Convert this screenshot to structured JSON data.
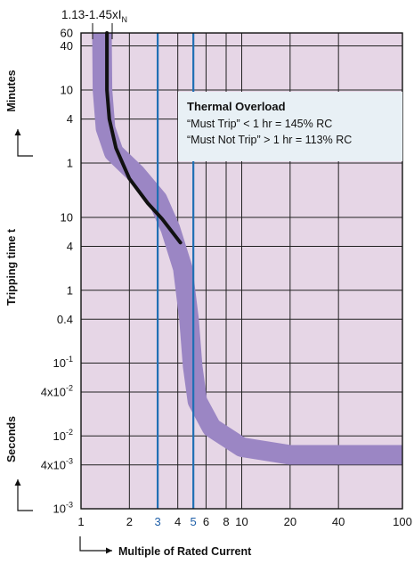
{
  "chart_data": {
    "type": "line",
    "title": "",
    "xlabel": "Multiple of Rated Current",
    "ylabel": "Tripping time t",
    "y_unit_upper": "Minutes",
    "y_unit_lower": "Seconds",
    "x_scale": "log",
    "xlim": [
      1,
      100
    ],
    "x_ticks": [
      {
        "value": 1,
        "label": "1",
        "highlight": false
      },
      {
        "value": 2,
        "label": "2",
        "highlight": false
      },
      {
        "value": 3,
        "label": "3",
        "highlight": true
      },
      {
        "value": 4,
        "label": "4",
        "highlight": false
      },
      {
        "value": 5,
        "label": "5",
        "highlight": true
      },
      {
        "value": 6,
        "label": "6",
        "highlight": false
      },
      {
        "value": 8,
        "label": "8",
        "highlight": false
      },
      {
        "value": 10,
        "label": "10",
        "highlight": false
      },
      {
        "value": 20,
        "label": "20",
        "highlight": false
      },
      {
        "value": 40,
        "label": "40",
        "highlight": false
      },
      {
        "value": 100,
        "label": "100",
        "highlight": false
      }
    ],
    "y_ticks_minutes": [
      {
        "value": 60,
        "label": "60"
      },
      {
        "value": 40,
        "label": "40"
      },
      {
        "value": 10,
        "label": "10"
      },
      {
        "value": 4,
        "label": "4"
      },
      {
        "value": 1,
        "label": "1"
      }
    ],
    "y_ticks_seconds": [
      {
        "value": 10,
        "label": "10"
      },
      {
        "value": 4,
        "label": "4"
      },
      {
        "value": 1,
        "label": "1"
      },
      {
        "value": 0.4,
        "label": "0.4"
      },
      {
        "value": 0.1,
        "label": "10",
        "sup": "-1"
      },
      {
        "value": 0.04,
        "label": "4x10",
        "sup": "-2"
      },
      {
        "value": 0.01,
        "label": "10",
        "sup": "-2"
      },
      {
        "value": 0.004,
        "label": "4x10",
        "sup": "-3"
      },
      {
        "value": 0.001,
        "label": "10",
        "sup": "-3"
      }
    ],
    "grid": true,
    "band": {
      "description": "tripping characteristic tolerance band",
      "color": "#9b86c4",
      "points": [
        [
          1.35,
          3600
        ],
        [
          1.36,
          600
        ],
        [
          1.42,
          180
        ],
        [
          1.6,
          84
        ],
        [
          2.2,
          42
        ],
        [
          3.0,
          18
        ],
        [
          3.6,
          7
        ],
        [
          4.3,
          2
        ],
        [
          4.7,
          0.4
        ],
        [
          4.95,
          0.09
        ],
        [
          5.3,
          0.03
        ],
        [
          6.5,
          0.013
        ],
        [
          10,
          0.007
        ],
        [
          20,
          0.0055
        ],
        [
          40,
          0.0055
        ],
        [
          100,
          0.0055
        ]
      ]
    },
    "series": [
      {
        "color": "#111111",
        "points": [
          [
            1.45,
            3600
          ],
          [
            1.45,
            600
          ],
          [
            1.5,
            240
          ],
          [
            1.65,
            96
          ],
          [
            2.0,
            36
          ],
          [
            2.6,
            16
          ],
          [
            3.2,
            9.5
          ],
          [
            4.15,
            4.5
          ]
        ]
      }
    ],
    "vertical_markers": [
      {
        "x": 3,
        "color": "#1f6fb4"
      },
      {
        "x": 5,
        "color": "#1f6fb4"
      }
    ],
    "colors": {
      "plot_background": "#e6d6e6",
      "band": "#9b86c4",
      "marker": "#1f6fb4",
      "curve": "#111111",
      "note_box": "#e8f0f5"
    },
    "annotations": {
      "top_label": "1.13-1.45xI",
      "top_label_sub": "N",
      "note_title": "Thermal Overload",
      "note_lines": [
        "“Must Trip” < 1 hr = 145% RC",
        "“Must Not Trip” > 1 hr = 113% RC"
      ]
    }
  }
}
